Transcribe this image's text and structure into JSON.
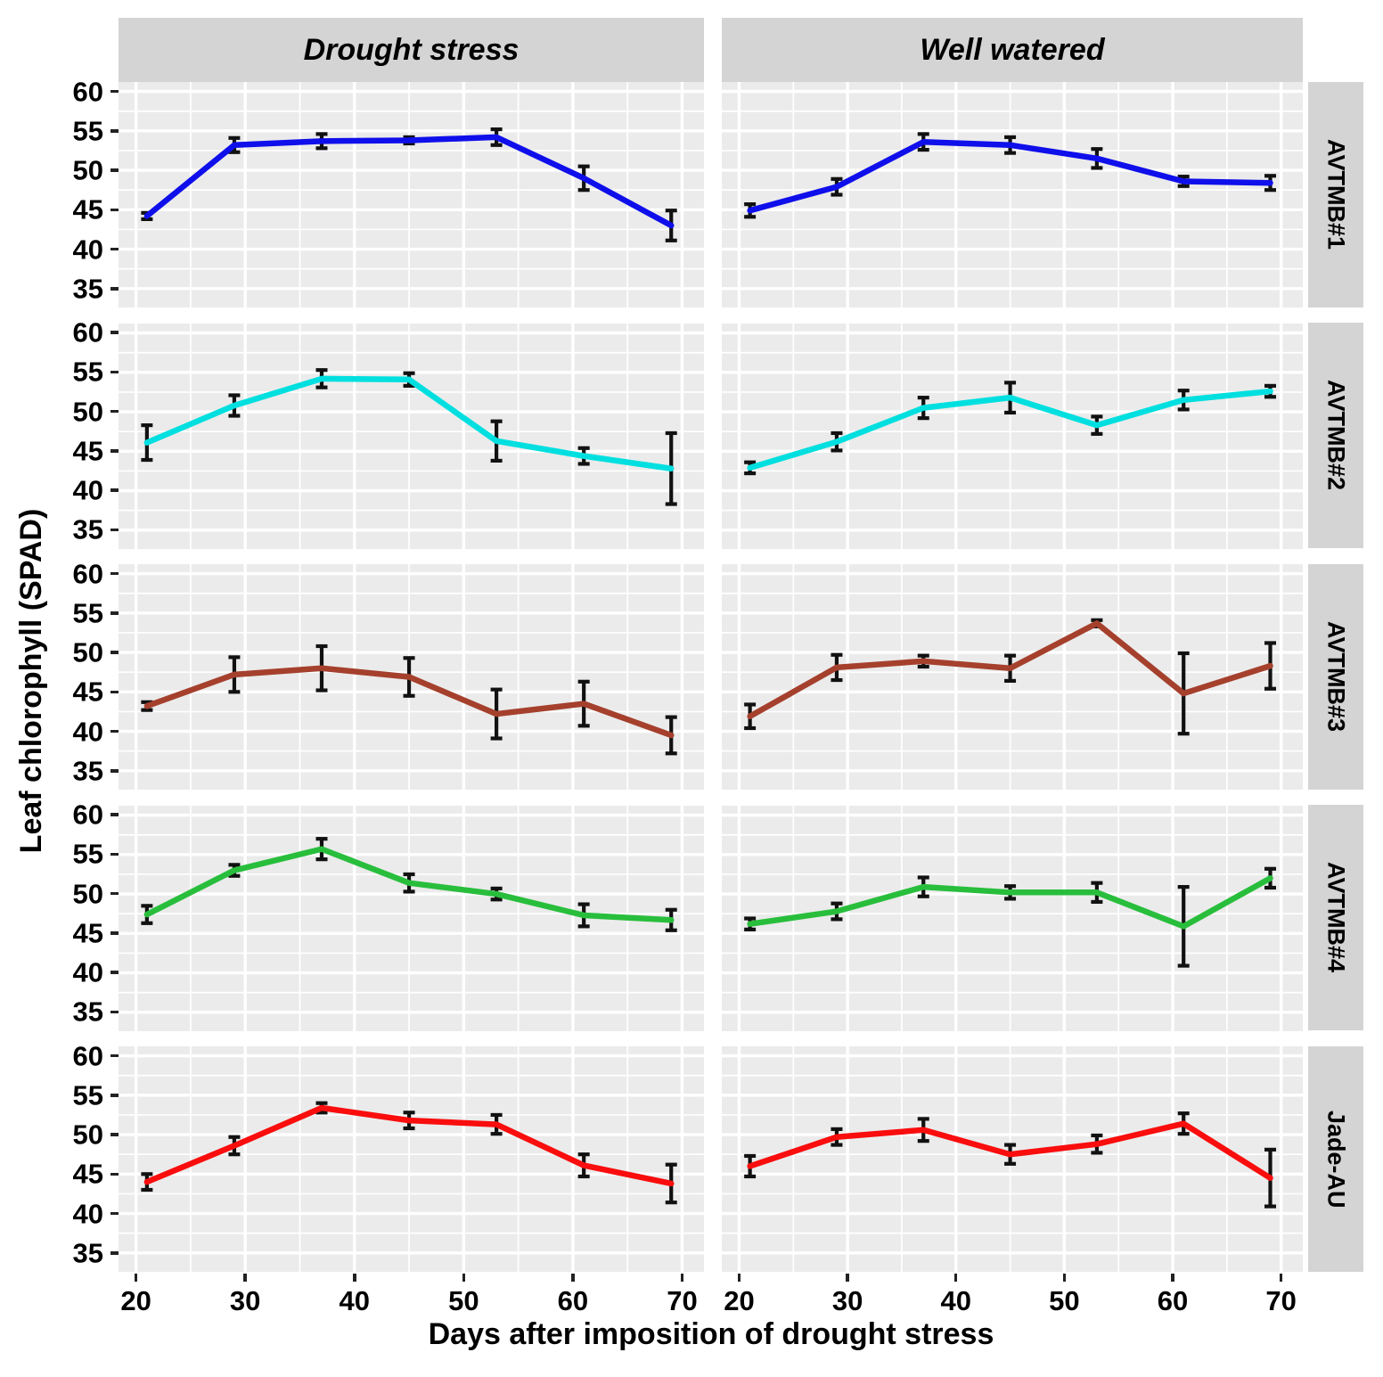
{
  "chart_data": {
    "type": "line",
    "title": "",
    "xlabel": "Days after imposition of drought stress",
    "ylabel": "Leaf chlorophyll (SPAD)",
    "facet_cols": [
      "Drought stress",
      "Well watered"
    ],
    "facet_rows": [
      "AVTMB#1",
      "AVTMB#2",
      "AVTMB#3",
      "AVTMB#4",
      "Jade-AU"
    ],
    "x": [
      21,
      29,
      37,
      45,
      53,
      61,
      69
    ],
    "xticks": [
      20,
      30,
      40,
      50,
      60,
      70
    ],
    "yticks": [
      35,
      40,
      45,
      50,
      55,
      60
    ],
    "xlim": [
      18.4,
      72
    ],
    "ylim": [
      32.6,
      61.2
    ],
    "grid": "major+minor white on grey",
    "legend": "none",
    "error_bars": true,
    "series": [
      {
        "row": "AVTMB#1",
        "col": "Drought stress",
        "color": "#0f0feb",
        "y": [
          44.2,
          53.2,
          53.7,
          53.8,
          54.2,
          49.0,
          43.0
        ],
        "err": [
          0.4,
          0.9,
          0.9,
          0.4,
          1.0,
          1.5,
          1.9
        ]
      },
      {
        "row": "AVTMB#1",
        "col": "Well watered",
        "color": "#0f0feb",
        "y": [
          44.9,
          47.9,
          53.6,
          53.2,
          51.5,
          48.6,
          48.4
        ],
        "err": [
          0.8,
          1.0,
          1.0,
          1.0,
          1.2,
          0.6,
          0.9
        ]
      },
      {
        "row": "AVTMB#2",
        "col": "Drought stress",
        "color": "#00dfdf",
        "y": [
          46.1,
          50.8,
          54.2,
          54.1,
          46.3,
          44.4,
          42.8
        ],
        "err": [
          2.2,
          1.3,
          1.1,
          0.8,
          2.5,
          1.0,
          4.5
        ]
      },
      {
        "row": "AVTMB#2",
        "col": "Well watered",
        "color": "#00dfdf",
        "y": [
          42.9,
          46.2,
          50.5,
          51.8,
          48.3,
          51.5,
          52.6
        ],
        "err": [
          0.7,
          1.1,
          1.3,
          1.9,
          1.1,
          1.2,
          0.7
        ]
      },
      {
        "row": "AVTMB#3",
        "col": "Drought stress",
        "color": "#a5402d",
        "y": [
          43.2,
          47.2,
          48.0,
          46.9,
          42.2,
          43.5,
          39.5
        ],
        "err": [
          0.5,
          2.2,
          2.8,
          2.4,
          3.1,
          2.8,
          2.3
        ]
      },
      {
        "row": "AVTMB#3",
        "col": "Well watered",
        "color": "#a5402d",
        "y": [
          41.9,
          48.1,
          48.9,
          48.0,
          53.7,
          44.8,
          48.3
        ],
        "err": [
          1.5,
          1.6,
          0.7,
          1.6,
          0.4,
          5.1,
          2.9
        ]
      },
      {
        "row": "AVTMB#4",
        "col": "Drought stress",
        "color": "#28be3c",
        "y": [
          47.4,
          53.0,
          55.7,
          51.4,
          50.0,
          47.3,
          46.7
        ],
        "err": [
          1.1,
          0.7,
          1.3,
          1.1,
          0.7,
          1.4,
          1.3
        ]
      },
      {
        "row": "AVTMB#4",
        "col": "Well watered",
        "color": "#28be3c",
        "y": [
          46.2,
          47.8,
          50.9,
          50.2,
          50.2,
          45.9,
          52.0
        ],
        "err": [
          0.7,
          1.0,
          1.2,
          0.8,
          1.2,
          5.0,
          1.2
        ]
      },
      {
        "row": "Jade-AU",
        "col": "Drought stress",
        "color": "#f90d0d",
        "y": [
          44.0,
          48.6,
          53.4,
          51.8,
          51.3,
          46.1,
          43.8
        ],
        "err": [
          1.0,
          1.1,
          0.6,
          1.0,
          1.2,
          1.4,
          2.4
        ]
      },
      {
        "row": "Jade-AU",
        "col": "Well watered",
        "color": "#f90d0d",
        "y": [
          46.0,
          49.7,
          50.6,
          47.5,
          48.8,
          51.4,
          44.5
        ],
        "err": [
          1.3,
          1.0,
          1.4,
          1.2,
          1.1,
          1.3,
          3.6
        ]
      }
    ]
  },
  "styles": {
    "panel_bg": "#ebebeb",
    "strip_bg": "#d4d4d4",
    "grid_color": "#ffffff",
    "errorbar_color": "#111111",
    "text_color": "#000000"
  }
}
